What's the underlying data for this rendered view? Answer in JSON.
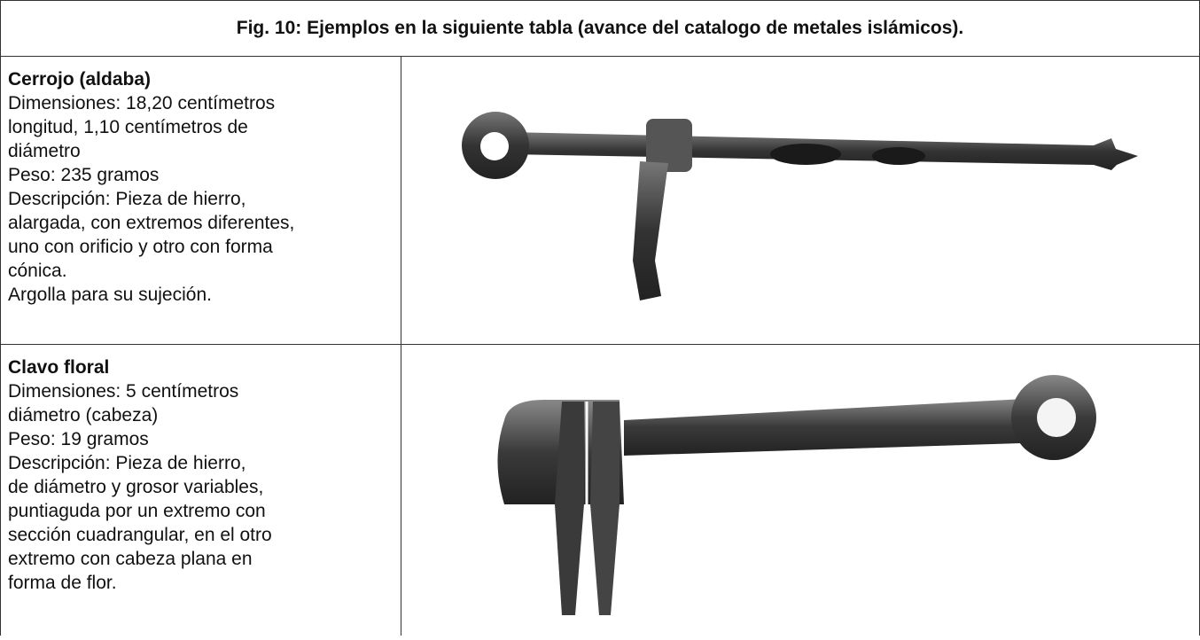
{
  "header": {
    "title": "Fig. 10: Ejemplos en la siguiente tabla (avance del catalogo de metales islámicos)."
  },
  "table": {
    "rows": [
      {
        "title": "Cerrojo (aldaba)",
        "lines": [
          "Dimensiones: 18,20 centímetros",
          "longitud, 1,10 centímetros de",
          "diámetro",
          "Peso: 235 gramos",
          "Descripción: Pieza de hierro,",
          "alargada, con extremos diferentes,",
          "uno con orificio y otro con forma",
          "cónica.",
          "Argolla para su sujeción."
        ]
      },
      {
        "title": "Clavo floral",
        "lines": [
          "Dimensiones: 5 centímetros",
          "diámetro (cabeza)",
          "Peso: 19 gramos",
          "Descripción: Pieza de hierro,",
          "de diámetro y grosor variables,",
          "puntiaguda por un extremo con",
          "sección cuadrangular, en el otro",
          "extremo con cabeza plana en",
          "forma de flor."
        ]
      }
    ]
  }
}
